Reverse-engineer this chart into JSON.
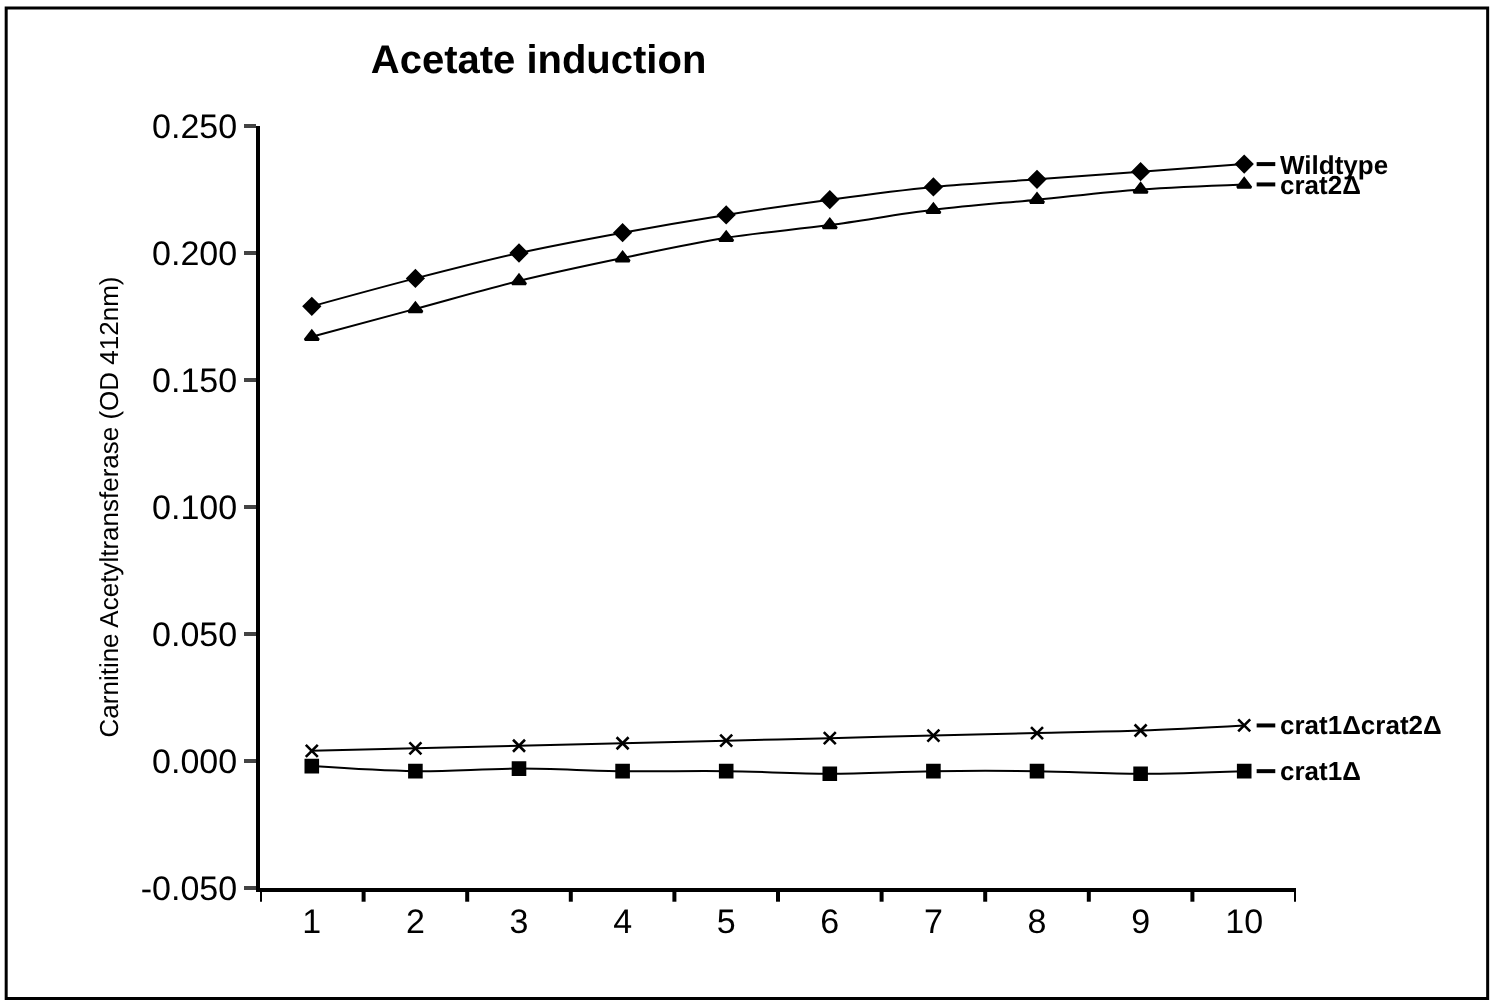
{
  "chart_data": {
    "type": "line",
    "title": "Acetate induction",
    "ylabel": "Carnitine Acetyltransferase (OD 412nm)",
    "categories": [
      "1",
      "2",
      "3",
      "4",
      "5",
      "6",
      "7",
      "8",
      "9",
      "10"
    ],
    "ylim": [
      -0.05,
      0.25
    ],
    "yticks": [
      {
        "value": -0.05,
        "label": "-0.050"
      },
      {
        "value": 0,
        "label": "0.000"
      },
      {
        "value": 0.05,
        "label": "0.050"
      },
      {
        "value": 0.1,
        "label": "0.100"
      },
      {
        "value": 0.15,
        "label": "0.150"
      },
      {
        "value": 0.2,
        "label": "0.200"
      },
      {
        "value": 0.25,
        "label": "0.250"
      }
    ],
    "legend": "right",
    "line_style": "solid",
    "series": [
      {
        "name": "Wildtype",
        "color": "#000000",
        "marker": "diamond",
        "values": [
          0.179,
          0.19,
          0.2,
          0.208,
          0.215,
          0.221,
          0.226,
          0.229,
          0.232,
          0.235
        ]
      },
      {
        "name": "crat2Δ",
        "color": "#000000",
        "marker": "triangle",
        "values": [
          0.167,
          0.178,
          0.189,
          0.198,
          0.206,
          0.211,
          0.217,
          0.221,
          0.225,
          0.227
        ]
      },
      {
        "name": "crat1Δcrat2Δ",
        "color": "#000000",
        "marker": "cross",
        "values": [
          0.004,
          0.005,
          0.006,
          0.007,
          0.008,
          0.009,
          0.01,
          0.011,
          0.012,
          0.014
        ]
      },
      {
        "name": "crat1Δ",
        "color": "#000000",
        "marker": "square",
        "values": [
          -0.002,
          -0.004,
          -0.003,
          -0.004,
          -0.004,
          -0.005,
          -0.004,
          -0.004,
          -0.005,
          -0.004
        ]
      }
    ]
  }
}
